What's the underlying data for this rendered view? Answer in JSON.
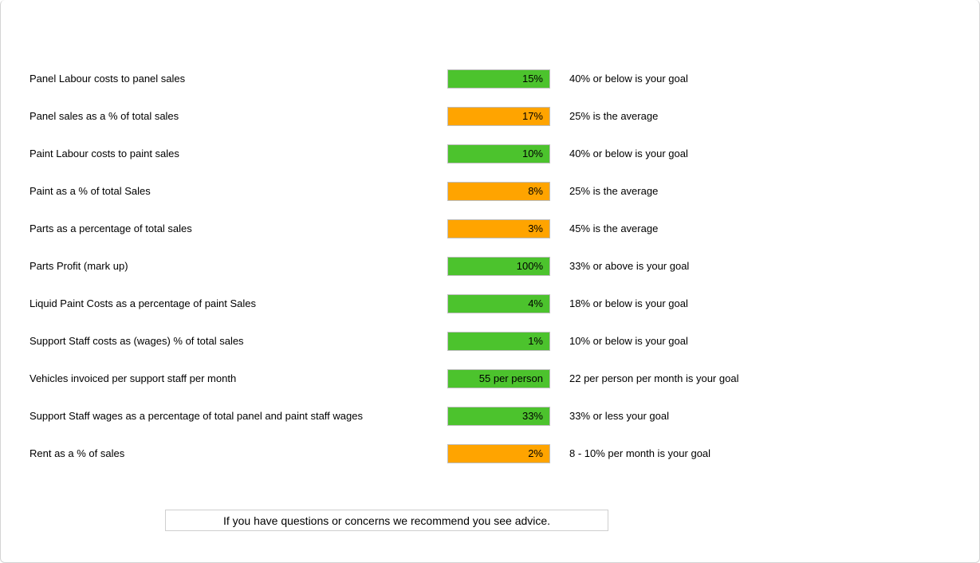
{
  "colors": {
    "green": "#4cc32d",
    "orange": "#ffa400",
    "badge_border": "#bdbdbd"
  },
  "footer": {
    "note": "If you have questions or concerns we recommend you see advice."
  },
  "metrics": [
    {
      "label": "Panel Labour costs to panel sales",
      "value": "15%",
      "status": "green",
      "goal": "40% or below is your goal"
    },
    {
      "label": "Panel sales as a % of total sales",
      "value": "17%",
      "status": "orange",
      "goal": "25% is the average"
    },
    {
      "label": "Paint Labour costs to paint sales",
      "value": "10%",
      "status": "green",
      "goal": "40% or below is your goal"
    },
    {
      "label": "Paint as a % of total Sales",
      "value": "8%",
      "status": "orange",
      "goal": "25% is the average"
    },
    {
      "label": "Parts as a percentage of total sales",
      "value": "3%",
      "status": "orange",
      "goal": "45% is the average"
    },
    {
      "label": "Parts Profit (mark up)",
      "value": "100%",
      "status": "green",
      "goal": "33% or above is your goal"
    },
    {
      "label": "Liquid Paint Costs as a percentage of paint Sales",
      "value": "4%",
      "status": "green",
      "goal": "18% or below is your goal"
    },
    {
      "label": "Support Staff costs as (wages) % of total sales",
      "value": "1%",
      "status": "green",
      "goal": "10% or below is your goal"
    },
    {
      "label": "Vehicles invoiced per support staff per month",
      "value": "55 per person",
      "status": "green",
      "goal": "22 per person per month is your goal"
    },
    {
      "label": "Support Staff wages as a percentage of total panel and paint staff wages",
      "value": "33%",
      "status": "green",
      "goal": "33% or less your goal"
    },
    {
      "label": "Rent as a % of sales",
      "value": "2%",
      "status": "orange",
      "goal": "8 - 10% per month is your goal"
    }
  ]
}
